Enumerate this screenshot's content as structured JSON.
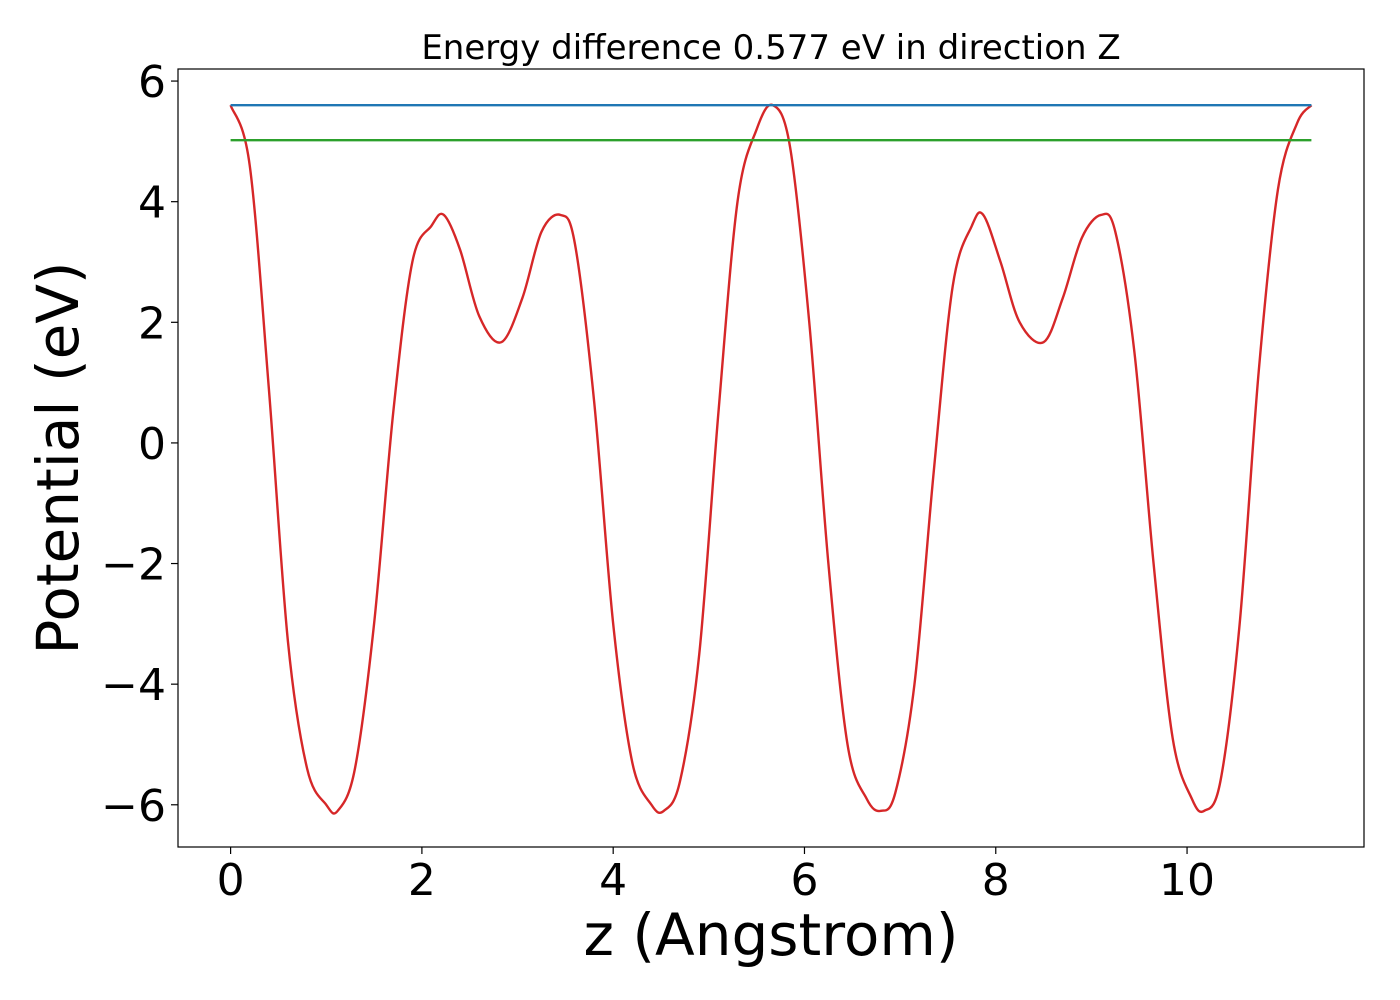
{
  "chart_data": {
    "type": "line",
    "title": "Energy difference 0.577 eV in direction Z",
    "xlabel": "z (Angstrom)",
    "ylabel": "Potential (eV)",
    "xlim": [
      -0.55,
      11.85
    ],
    "ylim": [
      -6.7,
      6.2
    ],
    "x_ticks": [
      0,
      2,
      4,
      6,
      8,
      10
    ],
    "x_tick_labels": [
      "0",
      "2",
      "4",
      "6",
      "8",
      "10"
    ],
    "y_ticks": [
      -6,
      -4,
      -2,
      0,
      2,
      4,
      6
    ],
    "y_tick_labels": [
      "−6",
      "−4",
      "−2",
      "0",
      "2",
      "4",
      "6"
    ],
    "grid": false,
    "series": [
      {
        "color": "#d62728",
        "x": [
          0.0,
          0.2,
          0.4,
          0.6,
          0.8,
          1.0,
          1.12,
          1.3,
          1.5,
          1.7,
          1.9,
          2.1,
          2.23,
          2.4,
          2.6,
          2.83,
          3.05,
          3.25,
          3.45,
          3.6,
          3.8,
          4.0,
          4.2,
          4.4,
          4.53,
          4.7,
          4.9,
          5.1,
          5.3,
          5.5,
          5.67,
          5.85,
          6.05,
          6.25,
          6.45,
          6.65,
          6.8,
          6.95,
          7.15,
          7.35,
          7.55,
          7.75,
          7.87,
          8.05,
          8.25,
          8.5,
          8.7,
          8.9,
          9.1,
          9.25,
          9.45,
          9.65,
          9.85,
          10.05,
          10.18,
          10.35,
          10.55,
          10.75,
          10.95,
          11.15,
          11.3
        ],
        "y": [
          5.6,
          4.6,
          0.9,
          -3.3,
          -5.4,
          -6.0,
          -6.1,
          -5.4,
          -3.0,
          0.5,
          3.0,
          3.6,
          3.78,
          3.2,
          2.1,
          1.67,
          2.4,
          3.5,
          3.78,
          3.3,
          0.7,
          -3.0,
          -5.3,
          -6.0,
          -6.1,
          -5.6,
          -3.5,
          0.5,
          4.0,
          5.2,
          5.6,
          4.9,
          2.0,
          -2.0,
          -5.0,
          -5.9,
          -6.1,
          -5.8,
          -4.0,
          -0.5,
          2.6,
          3.6,
          3.78,
          3.0,
          2.0,
          1.67,
          2.4,
          3.4,
          3.78,
          3.5,
          1.5,
          -2.0,
          -4.9,
          -5.9,
          -6.1,
          -5.6,
          -3.0,
          1.2,
          4.2,
          5.3,
          5.6
        ]
      },
      {
        "color": "#1f77b4",
        "x": [
          0.0,
          11.3
        ],
        "y": [
          5.6,
          5.6
        ]
      },
      {
        "color": "#2ca02c",
        "x": [
          0.0,
          11.3
        ],
        "y": [
          5.02,
          5.02
        ]
      }
    ]
  }
}
